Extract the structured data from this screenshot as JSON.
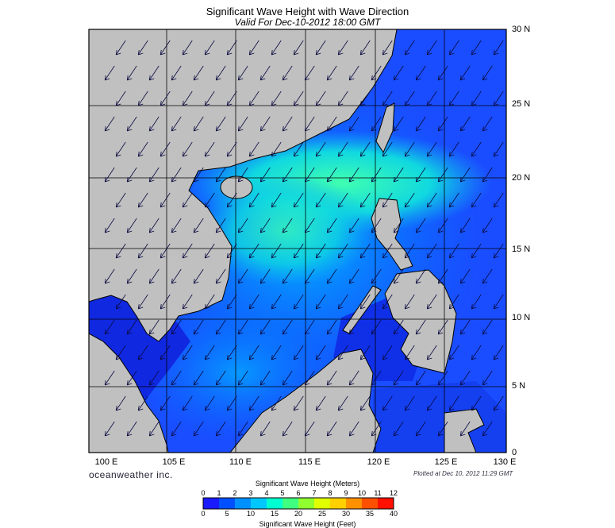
{
  "title": "Significant Wave Height with Wave Direction",
  "subtitle": "Valid For Dec-10-2012 18:00 GMT",
  "map": {
    "lon_range": [
      100,
      130
    ],
    "lat_range": [
      0,
      30
    ],
    "lon_labels": [
      "100 E",
      "105 E",
      "110 E",
      "115 E",
      "120 E",
      "125 E",
      "130 E"
    ],
    "lat_labels": [
      "30 N",
      "25 N",
      "20 N",
      "15 N",
      "10 N",
      "5 N",
      "0"
    ],
    "land_color": "#c0c0c0",
    "wave_direction": "from north-east (arrows pointing south-west)"
  },
  "branding": {
    "logo_text": "oceanweather inc.",
    "plotted_text": "Plotted at Dec 10, 2012 11:29 GMT"
  },
  "colorbar": {
    "meters_title": "Significant Wave Height (Meters)",
    "feet_title": "Significant Wave Height (Feet)",
    "meters_ticks": [
      "0",
      "1",
      "2",
      "3",
      "4",
      "5",
      "6",
      "7",
      "8",
      "9",
      "10",
      "11",
      "12"
    ],
    "feet_ticks": [
      "0",
      "5",
      "10",
      "15",
      "20",
      "25",
      "30",
      "35",
      "40"
    ],
    "colors": [
      "#1a1aff",
      "#0050ff",
      "#0090ff",
      "#00c8ff",
      "#00ffd0",
      "#40ff80",
      "#90ff30",
      "#e0ff00",
      "#ffd000",
      "#ff9000",
      "#ff5000",
      "#ff1000"
    ]
  }
}
